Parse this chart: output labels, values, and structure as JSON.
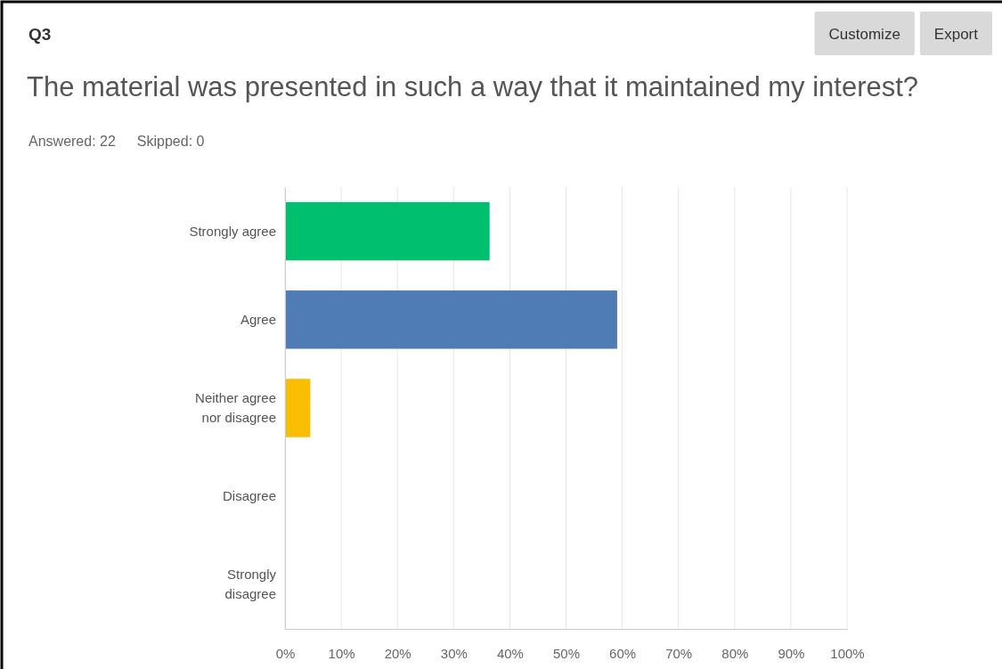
{
  "chart_data": {
    "type": "bar",
    "orientation": "horizontal",
    "title": "Q3",
    "subtitle": "The material was presented in such a way that it maintained my interest?",
    "annotations": [
      "Answered: 22",
      "Skipped: 0",
      "Customize",
      "Export"
    ],
    "categories": [
      "Strongly agree",
      "Agree",
      "Neither agree nor disagree",
      "Disagree",
      "Strongly disagree"
    ],
    "values": [
      36.4,
      59.1,
      4.5,
      0,
      0
    ],
    "colors": [
      "#00bf6f",
      "#507cb6",
      "#f9be00",
      "#6bc8cd",
      "#ff8b4f"
    ],
    "xlim": [
      0,
      100
    ],
    "xticks": [
      {
        "value": 0,
        "label": "0%"
      },
      {
        "value": 10,
        "label": "10%"
      },
      {
        "value": 20,
        "label": "20%"
      },
      {
        "value": 30,
        "label": "30%"
      },
      {
        "value": 40,
        "label": "40%"
      },
      {
        "value": 50,
        "label": "50%"
      },
      {
        "value": 60,
        "label": "60%"
      },
      {
        "value": 70,
        "label": "70%"
      },
      {
        "value": 80,
        "label": "80%"
      },
      {
        "value": 90,
        "label": "90%"
      },
      {
        "value": 100,
        "label": "100%"
      }
    ],
    "grid": "x"
  }
}
